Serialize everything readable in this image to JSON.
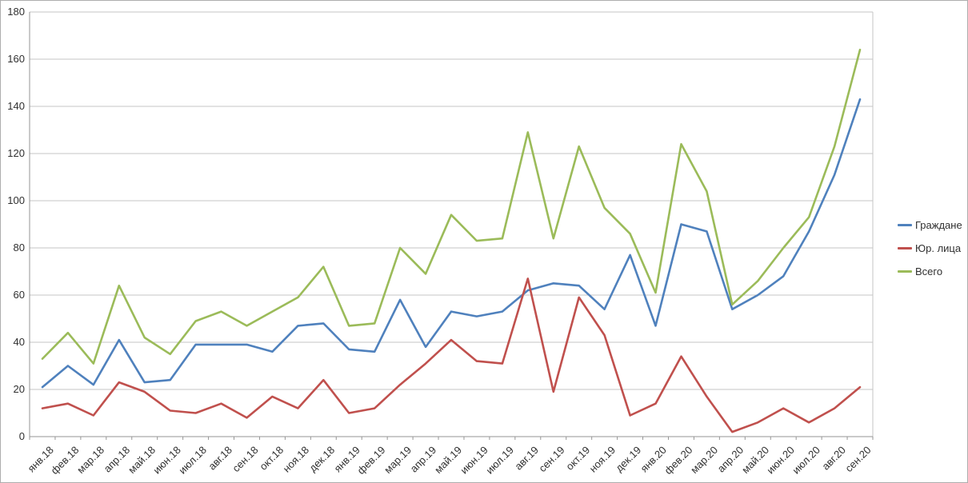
{
  "chart_data": {
    "type": "line",
    "title": "",
    "xlabel": "",
    "ylabel": "",
    "ylim": [
      0,
      180
    ],
    "ytick_step": 20,
    "yticks": [
      "0",
      "20",
      "40",
      "60",
      "80",
      "100",
      "120",
      "140",
      "160",
      "180"
    ],
    "grid": true,
    "legend_position": "right",
    "categories": [
      "янв.18",
      "фев.18",
      "мар.18",
      "апр.18",
      "май.18",
      "июн.18",
      "июл.18",
      "авг.18",
      "сен.18",
      "окт.18",
      "ноя.18",
      "дек.18",
      "янв.19",
      "фев.19",
      "мар.19",
      "апр.19",
      "май.19",
      "июн.19",
      "июл.19",
      "авг.19",
      "сен.19",
      "окт.19",
      "ноя.19",
      "дек.19",
      "янв.20",
      "фев.20",
      "мар.20",
      "апр.20",
      "май.20",
      "июн.20",
      "июл.20",
      "авг.20",
      "сен.20"
    ],
    "series": [
      {
        "name": "Граждане",
        "color": "#4F81BD",
        "values": [
          21,
          30,
          22,
          41,
          23,
          24,
          39,
          39,
          39,
          36,
          47,
          48,
          37,
          36,
          58,
          38,
          53,
          51,
          53,
          62,
          65,
          64,
          54,
          77,
          47,
          90,
          87,
          54,
          60,
          68,
          87,
          111,
          143
        ]
      },
      {
        "name": "Юр. лица",
        "color": "#C0504D",
        "values": [
          12,
          14,
          9,
          23,
          19,
          11,
          10,
          14,
          8,
          17,
          12,
          24,
          10,
          12,
          22,
          31,
          41,
          32,
          31,
          67,
          19,
          59,
          43,
          9,
          14,
          34,
          17,
          2,
          6,
          12,
          6,
          12,
          21
        ]
      },
      {
        "name": "Всего",
        "color": "#9BBB59",
        "values": [
          33,
          44,
          31,
          64,
          42,
          35,
          49,
          53,
          47,
          53,
          59,
          72,
          47,
          48,
          80,
          69,
          94,
          83,
          84,
          129,
          84,
          123,
          97,
          86,
          61,
          124,
          104,
          56,
          66,
          80,
          93,
          123,
          164
        ]
      }
    ],
    "colors": {
      "gridline": "#c4c4c4",
      "axis": "#969696",
      "text": "#303030",
      "plot_background": "#ffffff"
    }
  }
}
